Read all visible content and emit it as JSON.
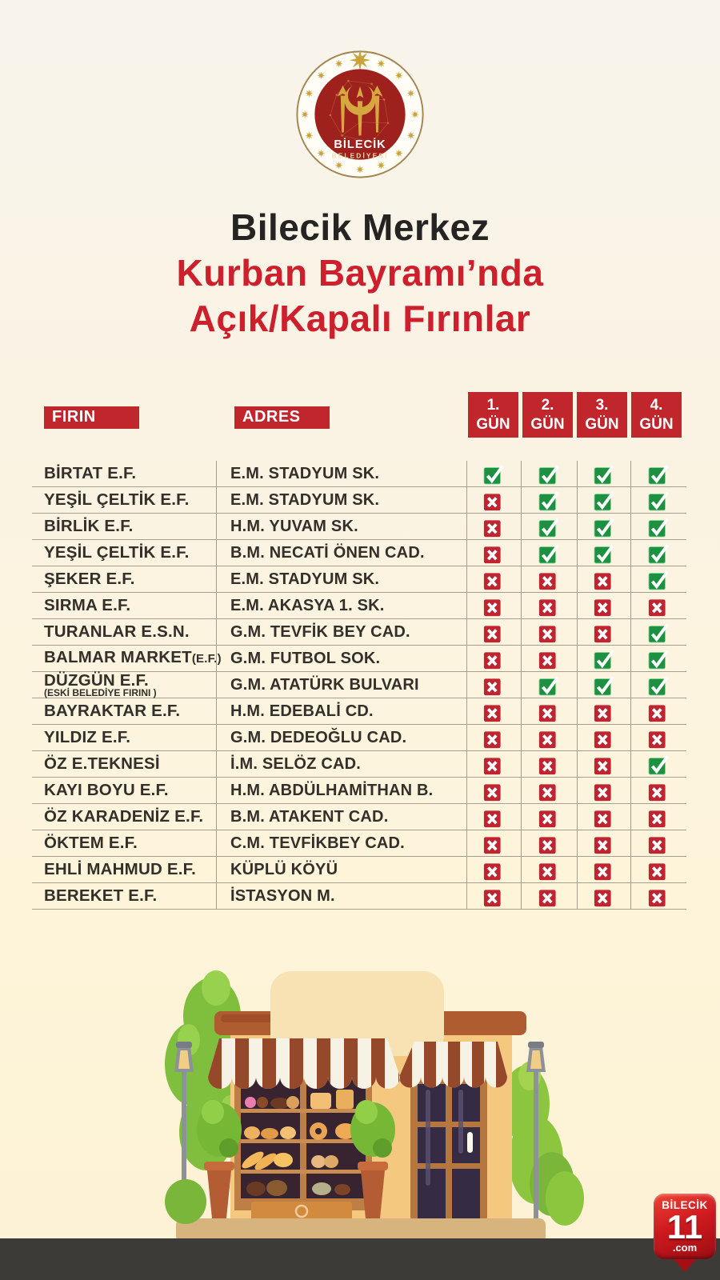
{
  "logo": {
    "name": "Bilecik Belediyesi",
    "line1": "BİLECİK",
    "line2": "BELEDİYESİ"
  },
  "title": {
    "line1": "Bilecik Merkez",
    "line2": "Kurban Bayramı’nda",
    "line3": "Açık/Kapalı Fırınlar"
  },
  "colors": {
    "accent_red": "#c2262d",
    "title_red": "#ce1f2c",
    "title_black": "#262422",
    "check_green": "#1d9141",
    "cross_red": "#bf2430",
    "background_cream": "#fdf3d8",
    "road_gray": "#3c3b38"
  },
  "table": {
    "col_firin": "FIRIN",
    "col_adres": "ADRES",
    "day_headers": [
      {
        "num": "1.",
        "word": "GÜN"
      },
      {
        "num": "2.",
        "word": "GÜN"
      },
      {
        "num": "3.",
        "word": "GÜN"
      },
      {
        "num": "4.",
        "word": "GÜN"
      }
    ],
    "rows": [
      {
        "name": "BİRTAT E.F.",
        "address": "E.M. STADYUM SK.",
        "days": [
          true,
          true,
          true,
          true
        ]
      },
      {
        "name": "YEŞİL ÇELTİK E.F.",
        "address": "E.M. STADYUM SK.",
        "days": [
          false,
          true,
          true,
          true
        ]
      },
      {
        "name": "BİRLİK E.F.",
        "address": "H.M. YUVAM SK.",
        "days": [
          false,
          true,
          true,
          true
        ]
      },
      {
        "name": "YEŞİL ÇELTİK E.F.",
        "address": "B.M. NECATİ ÖNEN CAD.",
        "days": [
          false,
          true,
          true,
          true
        ]
      },
      {
        "name": "ŞEKER E.F.",
        "address": "E.M. STADYUM SK.",
        "days": [
          false,
          false,
          false,
          true
        ]
      },
      {
        "name": "SIRMA E.F.",
        "address": "E.M. AKASYA 1. SK.",
        "days": [
          false,
          false,
          false,
          false
        ]
      },
      {
        "name": "TURANLAR E.S.N.",
        "address": "G.M. TEVFİK BEY CAD.",
        "days": [
          false,
          false,
          false,
          true
        ]
      },
      {
        "name": "BALMAR MARKET",
        "name_small": "(E.F.)",
        "address": "G.M. FUTBOL SOK.",
        "days": [
          false,
          false,
          true,
          true
        ]
      },
      {
        "name": "DÜZGÜN E.F.",
        "sub": "(ESKİ BELEDİYE FIRINI )",
        "address": "G.M. ATATÜRK BULVARI",
        "days": [
          false,
          true,
          true,
          true
        ]
      },
      {
        "name": "BAYRAKTAR E.F.",
        "address": "H.M. EDEBALİ CD.",
        "days": [
          false,
          false,
          false,
          false
        ]
      },
      {
        "name": "YILDIZ E.F.",
        "address": "G.M. DEDEOĞLU CAD.",
        "days": [
          false,
          false,
          false,
          false
        ]
      },
      {
        "name": "ÖZ E.TEKNESİ",
        "address": "İ.M. SELÖZ CAD.",
        "days": [
          false,
          false,
          false,
          true
        ]
      },
      {
        "name": "KAYI BOYU E.F.",
        "address": "H.M. ABDÜLHAMİTHAN B.",
        "days": [
          false,
          false,
          false,
          false
        ]
      },
      {
        "name": "ÖZ KARADENİZ E.F.",
        "address": "B.M. ATAKENT CAD.",
        "days": [
          false,
          false,
          false,
          false
        ]
      },
      {
        "name": "ÖKTEM E.F.",
        "address": "C.M. TEVFİKBEY CAD.",
        "days": [
          false,
          false,
          false,
          false
        ]
      },
      {
        "name": "EHLİ MAHMUD E.F.",
        "address": "KÜPLÜ KÖYÜ",
        "days": [
          false,
          false,
          false,
          false
        ]
      },
      {
        "name": "BEREKET E.F.",
        "address": "İSTASYON M.",
        "days": [
          false,
          false,
          false,
          false
        ]
      }
    ]
  },
  "footer_badge": {
    "line1": "BİLECİK",
    "line2": "11",
    "line3": ".com"
  }
}
